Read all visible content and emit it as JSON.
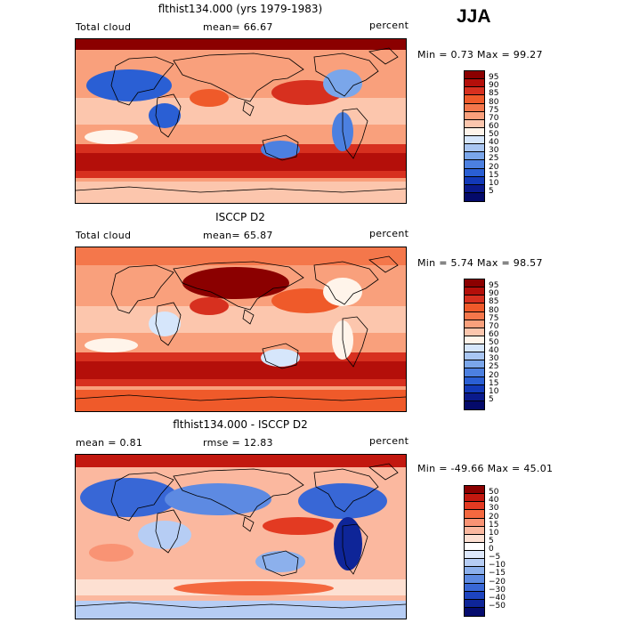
{
  "season": "JJA",
  "panels": [
    {
      "title": "flthist134.000 (yrs 1979-1983)",
      "left_label": "Total cloud",
      "mid_label": "mean=  66.67",
      "right_label": "percent",
      "stats": "Min =   0.73 Max =  99.27",
      "colorbar_labels": [
        "95",
        "90",
        "85",
        "80",
        "75",
        "70",
        "60",
        "50",
        "40",
        "30",
        "25",
        "20",
        "15",
        "10",
        "5"
      ],
      "map_kind": "model"
    },
    {
      "title": "ISCCP D2",
      "left_label": "Total cloud",
      "mid_label": "mean=  65.87",
      "right_label": "percent",
      "stats": "Min =   5.74 Max =  98.57",
      "colorbar_labels": [
        "95",
        "90",
        "85",
        "80",
        "75",
        "70",
        "60",
        "50",
        "40",
        "30",
        "25",
        "20",
        "15",
        "10",
        "5"
      ],
      "map_kind": "obs"
    },
    {
      "title": "flthist134.000 - ISCCP D2",
      "left_label": "mean =    0.81",
      "mid_label": "rmse =   12.83",
      "right_label": "percent",
      "stats": "Min = -49.66 Max =  45.01",
      "colorbar_labels": [
        "50",
        "40",
        "30",
        "20",
        "15",
        "10",
        "5",
        "0",
        "−5",
        "−10",
        "−15",
        "−20",
        "−30",
        "−40",
        "−50"
      ],
      "map_kind": "diff"
    }
  ],
  "colors": {
    "abs_scale": [
      "#8b0000",
      "#b40f0a",
      "#d7301f",
      "#ef5a2a",
      "#f4774b",
      "#f9a07c",
      "#fcc6ad",
      "#fff4ea",
      "#d6e6fb",
      "#a9c6f2",
      "#7aa6ea",
      "#4c80e0",
      "#2a5fd4",
      "#1239b8",
      "#0a1a8c",
      "#040a6a"
    ],
    "diff_scale": [
      "#8b0000",
      "#c2180f",
      "#e33a22",
      "#f4683f",
      "#f99374",
      "#fbb89f",
      "#fde0d2",
      "#ffffff",
      "#dde8fb",
      "#b6cdf4",
      "#8cb0ec",
      "#5d8ae2",
      "#3867d6",
      "#1d44bf",
      "#0e2598",
      "#050c6e"
    ]
  }
}
